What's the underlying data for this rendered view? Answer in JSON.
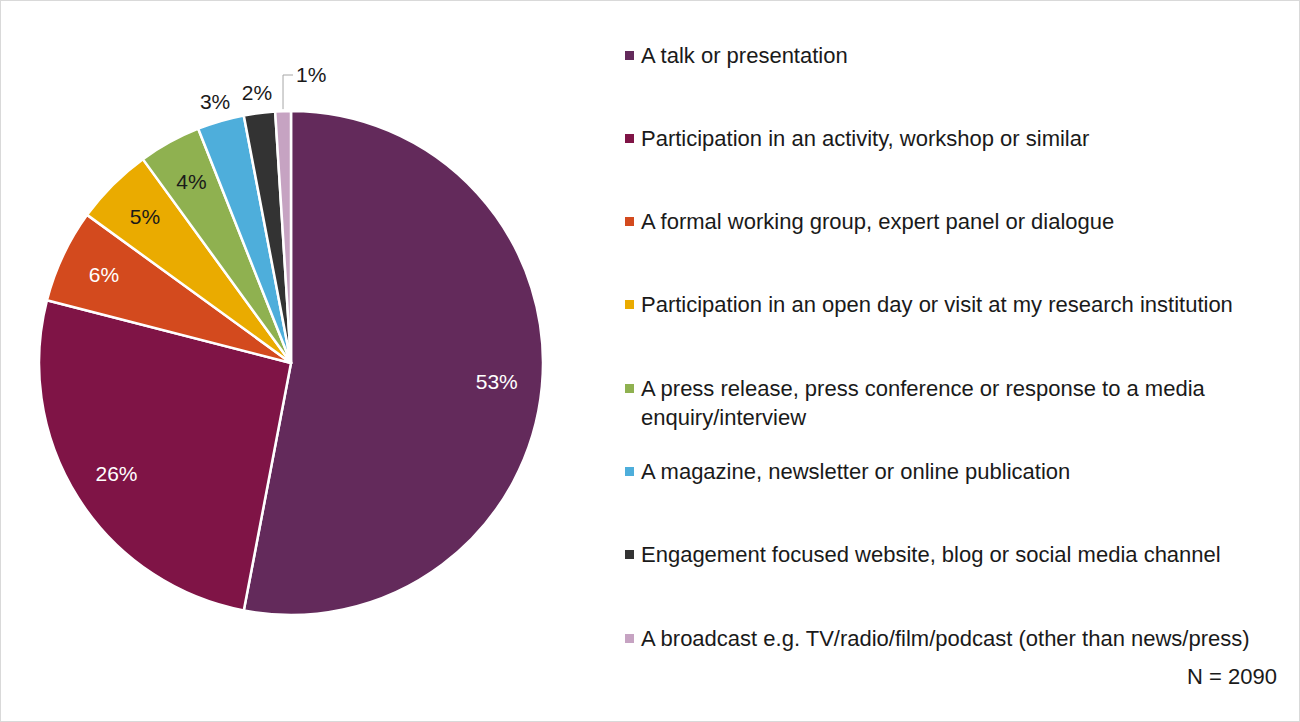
{
  "chart_data": {
    "type": "pie",
    "categories": [
      "A talk or presentation",
      "Participation in an activity, workshop or similar",
      "A formal working group, expert panel or dialogue",
      "Participation in an open day or visit at my research institution",
      "A press release, press conference or response to a media enquiry/interview",
      "A magazine, newsletter or online publication",
      "Engagement focused website, blog or social media channel",
      "A broadcast e.g. TV/radio/film/podcast (other than news/press)"
    ],
    "values": [
      53,
      26,
      6,
      5,
      4,
      3,
      2,
      1
    ],
    "value_labels": [
      "53%",
      "26%",
      "6%",
      "5%",
      "4%",
      "3%",
      "2%",
      "1%"
    ],
    "colors": [
      "#632a5b",
      "#7f1446",
      "#d34a1e",
      "#eaab00",
      "#8fb150",
      "#4eaedb",
      "#333333",
      "#c6a3c2"
    ],
    "data_labels": true,
    "legend": "right",
    "annotation": "N = 2090"
  }
}
